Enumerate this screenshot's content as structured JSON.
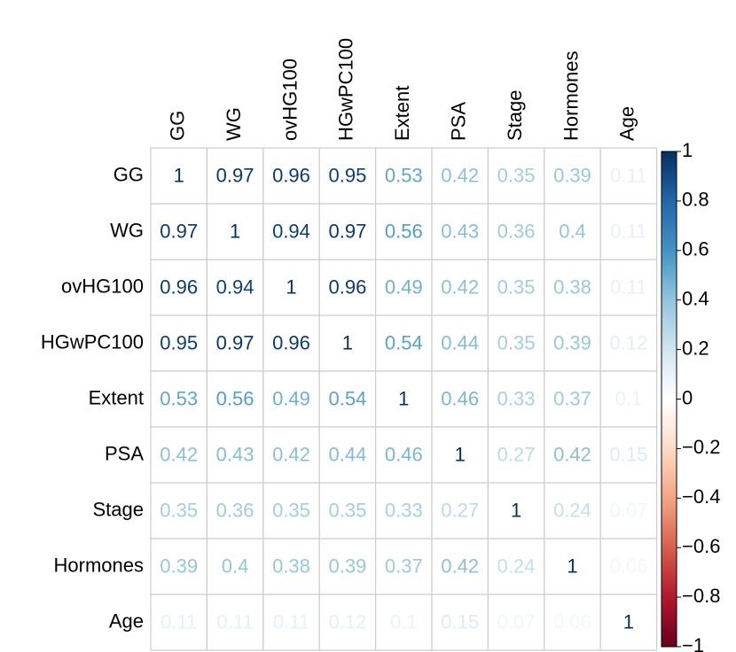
{
  "chart_data": {
    "type": "heatmap",
    "columns": [
      "GG",
      "WG",
      "ovHG100",
      "HGwPC100",
      "Extent",
      "PSA",
      "Stage",
      "Hormones",
      "Age"
    ],
    "rows": [
      "GG",
      "WG",
      "ovHG100",
      "HGwPC100",
      "Extent",
      "PSA",
      "Stage",
      "Hormones",
      "Age"
    ],
    "values": [
      [
        1,
        0.97,
        0.96,
        0.95,
        0.53,
        0.42,
        0.35,
        0.39,
        0.11
      ],
      [
        0.97,
        1,
        0.94,
        0.97,
        0.56,
        0.43,
        0.36,
        0.4,
        0.11
      ],
      [
        0.96,
        0.94,
        1,
        0.96,
        0.49,
        0.42,
        0.35,
        0.38,
        0.11
      ],
      [
        0.95,
        0.97,
        0.96,
        1,
        0.54,
        0.44,
        0.35,
        0.39,
        0.12
      ],
      [
        0.53,
        0.56,
        0.49,
        0.54,
        1,
        0.46,
        0.33,
        0.37,
        0.1
      ],
      [
        0.42,
        0.43,
        0.42,
        0.44,
        0.46,
        1,
        0.27,
        0.42,
        0.15
      ],
      [
        0.35,
        0.36,
        0.35,
        0.35,
        0.33,
        0.27,
        1,
        0.24,
        0.07
      ],
      [
        0.39,
        0.4,
        0.38,
        0.39,
        0.37,
        0.42,
        0.24,
        1,
        0.06
      ],
      [
        0.11,
        0.11,
        0.11,
        0.12,
        0.1,
        0.15,
        0.07,
        0.06,
        1
      ]
    ],
    "colorscale": [
      "#67001F",
      "#B2182B",
      "#D6604D",
      "#F4A582",
      "#FDDBC7",
      "#FFFFFF",
      "#D1E5F0",
      "#92C5DE",
      "#4393C3",
      "#2166AC",
      "#053061"
    ],
    "clim": [
      -1,
      1
    ],
    "cticks": [
      1,
      0.8,
      0.6,
      0.4,
      0.2,
      0,
      {
        "value": -0.2,
        "label": "−0.2"
      },
      {
        "value": -0.4,
        "label": "−0.4"
      },
      {
        "value": -0.6,
        "label": "−0.6"
      },
      {
        "value": -0.8,
        "label": "−0.8"
      },
      {
        "value": -1,
        "label": "−1"
      }
    ],
    "grid_color": "#cccccc"
  }
}
